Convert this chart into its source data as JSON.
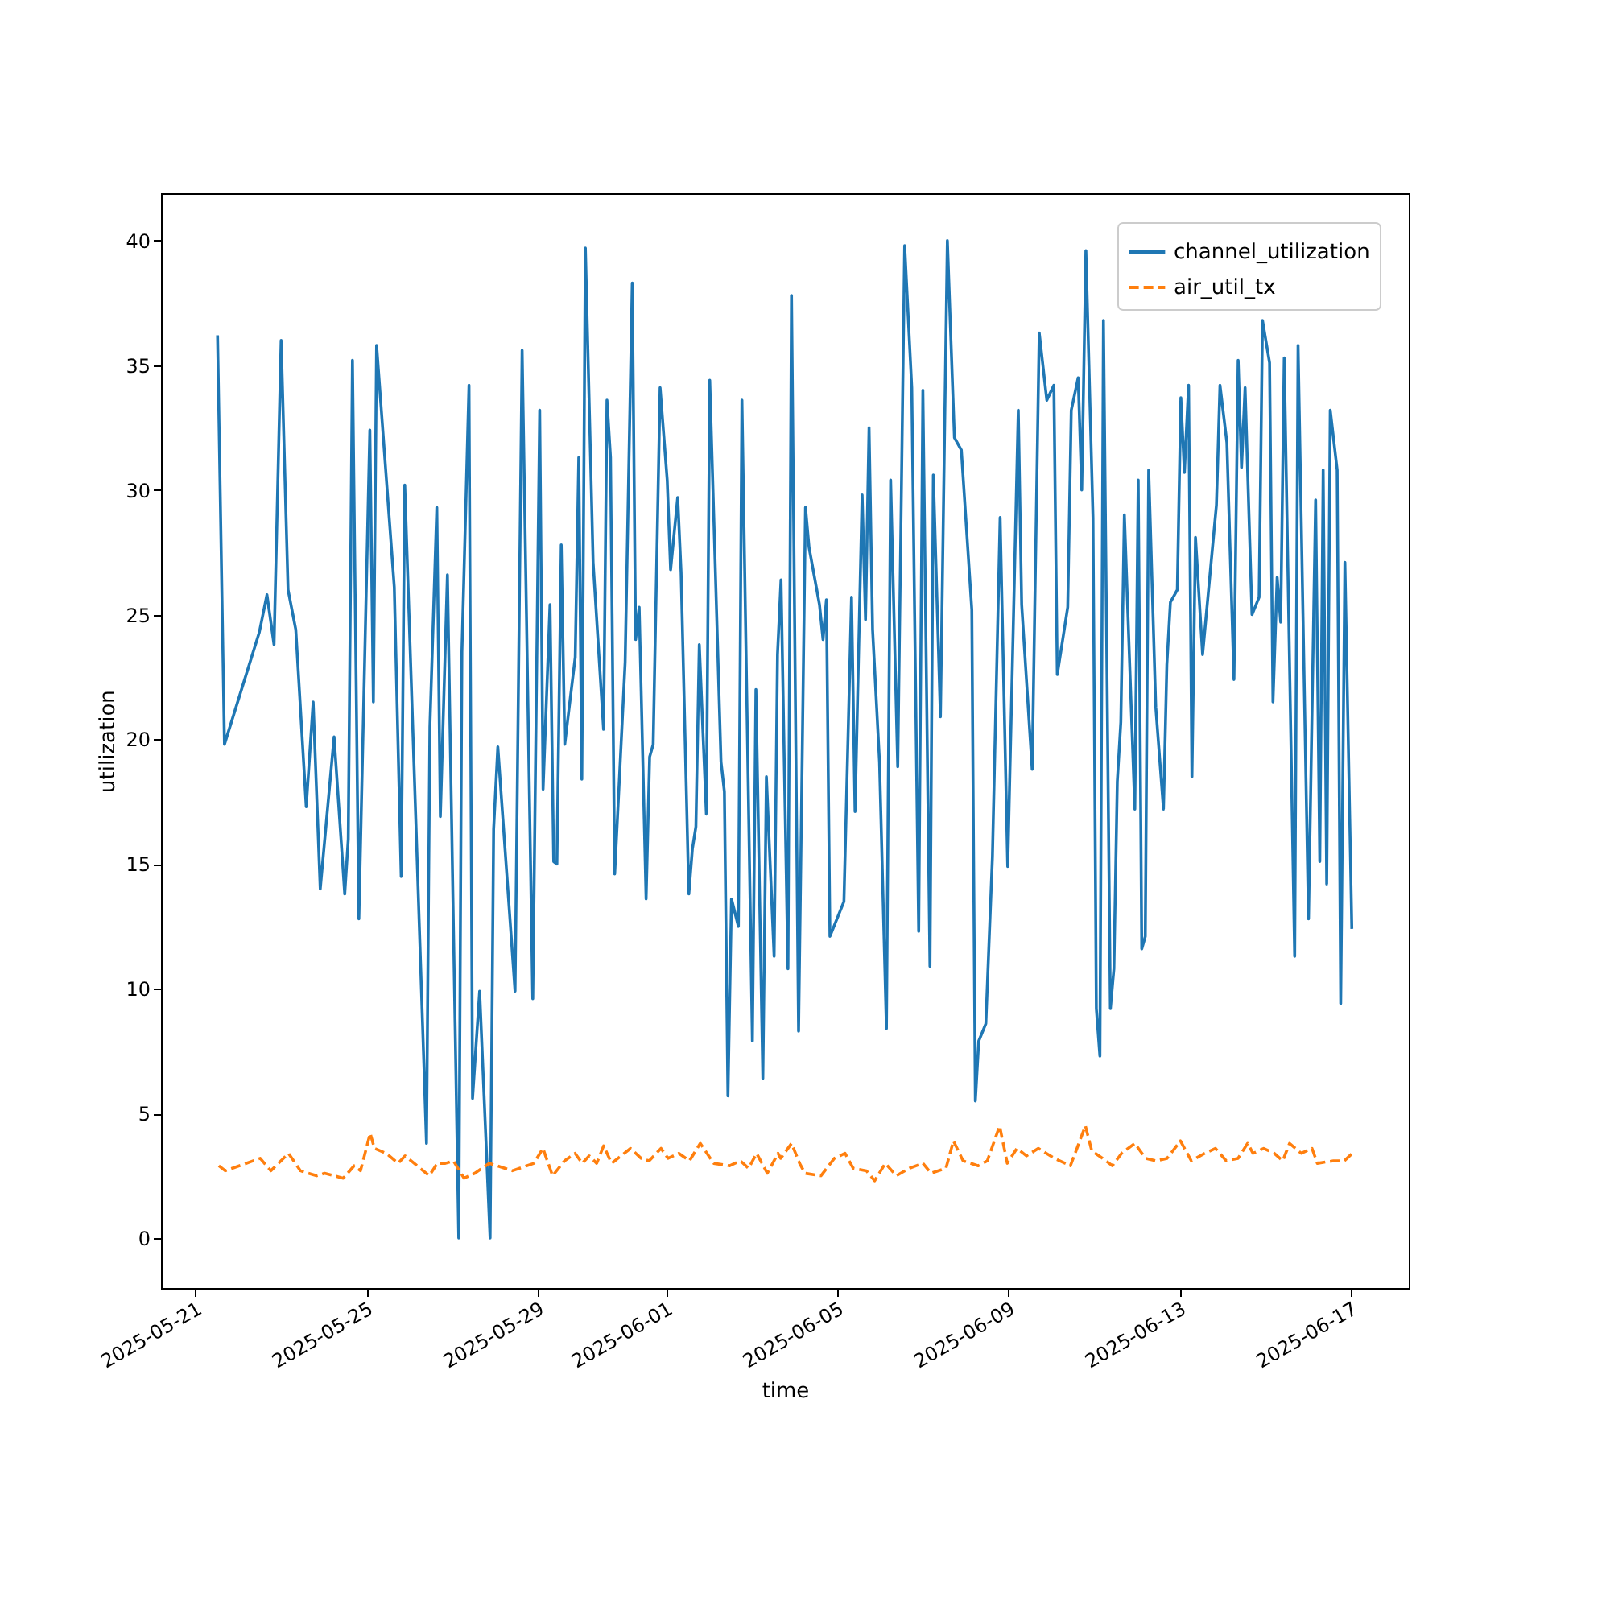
{
  "chart_data": {
    "type": "line",
    "xlabel": "time",
    "ylabel": "utilization",
    "xlim": [
      "2025-05-20T04:50",
      "2025-06-18T08:40"
    ],
    "ylim": [
      -2,
      41.9
    ],
    "xticks": [
      "2025-05-21",
      "2025-05-25",
      "2025-05-29",
      "2025-06-01",
      "2025-06-05",
      "2025-06-09",
      "2025-06-13",
      "2025-06-17"
    ],
    "yticks": [
      0,
      5,
      10,
      15,
      20,
      25,
      30,
      35,
      40
    ],
    "legend": "top right",
    "grid": false,
    "series": [
      {
        "name": "channel_utilization",
        "color": "#1f77b4",
        "line_style": "solid",
        "x": [
          "2025-05-21T12:33",
          "2025-05-21T16:26",
          "2025-05-22T12:00",
          "2025-05-22T16:16",
          "2025-05-22T20:14",
          "2025-05-23T00:13",
          "2025-05-23T04:06",
          "2025-05-23T08:26",
          "2025-05-23T14:18",
          "2025-05-23T18:11",
          "2025-05-23T22:09",
          "2025-05-24T05:55",
          "2025-05-24T11:53",
          "2025-05-24T13:52",
          "2025-05-24T16:13",
          "2025-05-24T19:49",
          "2025-05-25T01:58",
          "2025-05-25T03:57",
          "2025-05-25T05:45",
          "2025-05-25T15:41",
          "2025-05-25T19:34",
          "2025-05-25T21:33",
          "2025-05-26T09:45",
          "2025-05-26T11:39",
          "2025-05-26T15:32",
          "2025-05-26T17:31",
          "2025-05-26T21:29",
          "2025-05-27T03:50",
          "2025-05-27T05:36",
          "2025-05-27T09:35",
          "2025-05-27T11:34",
          "2025-05-27T15:33",
          "2025-05-27T21:25",
          "2025-05-27T23:24",
          "2025-05-28T01:45",
          "2025-05-28T11:25",
          "2025-05-28T15:23",
          "2025-05-28T21:21",
          "2025-05-29T01:14",
          "2025-05-29T03:08",
          "2025-05-29T07:01",
          "2025-05-29T09:05",
          "2025-05-29T10:53",
          "2025-05-29T13:19",
          "2025-05-29T15:18",
          "2025-05-29T21:10",
          "2025-05-29T23:09",
          "2025-05-30T00:52",
          "2025-05-30T02:51",
          "2025-05-30T07:12",
          "2025-05-30T13:04",
          "2025-05-30T14:58",
          "2025-05-30T16:57",
          "2025-05-30T19:18",
          "2025-05-31T01:10",
          "2025-05-31T05:09",
          "2025-05-31T07:03",
          "2025-05-31T09:02",
          "2025-05-31T12:55",
          "2025-05-31T14:54",
          "2025-05-31T16:53",
          "2025-05-31T20:46",
          "2025-06-01T00:45",
          "2025-06-01T02:39",
          "2025-06-01T06:38",
          "2025-06-01T08:32",
          "2025-06-01T12:53",
          "2025-06-01T14:52",
          "2025-06-01T16:51",
          "2025-06-01T18:45",
          "2025-06-01T22:43",
          "2025-06-02T00:37",
          "2025-06-02T06:56",
          "2025-06-02T08:50",
          "2025-06-02T10:49",
          "2025-06-02T12:48",
          "2025-06-02T16:41",
          "2025-06-02T18:40",
          "2025-06-03T00:32",
          "2025-06-03T02:31",
          "2025-06-03T06:24",
          "2025-06-03T08:23",
          "2025-06-03T12:43",
          "2025-06-03T14:37",
          "2025-06-03T16:36",
          "2025-06-03T20:29",
          "2025-06-03T22:28",
          "2025-06-04T02:26",
          "2025-06-04T06:19",
          "2025-06-04T08:18",
          "2025-06-04T14:10",
          "2025-06-04T16:09",
          "2025-06-04T18:03",
          "2025-06-04T20:02",
          "2025-06-05T03:53",
          "2025-06-05T08:08",
          "2025-06-05T10:07",
          "2025-06-05T14:05",
          "2025-06-05T15:59",
          "2025-06-05T17:58",
          "2025-06-05T19:57",
          "2025-06-05T23:50",
          "2025-06-06T03:43",
          "2025-06-06T06:04",
          "2025-06-06T10:03",
          "2025-06-06T13:56",
          "2025-06-06T17:55",
          "2025-06-06T21:48",
          "2025-06-07T00:09",
          "2025-06-07T04:08",
          "2025-06-07T06:01",
          "2025-06-07T10:00",
          "2025-06-07T13:53",
          "2025-06-07T17:51",
          "2025-06-07T21:44",
          "2025-06-08T03:36",
          "2025-06-08T05:35",
          "2025-06-08T07:29",
          "2025-06-08T11:28",
          "2025-06-08T15:10",
          "2025-06-08T19:29",
          "2025-06-08T23:44",
          "2025-06-09T05:40",
          "2025-06-09T07:34",
          "2025-06-09T13:27",
          "2025-06-09T17:25",
          "2025-06-09T21:40",
          "2025-06-10T01:38",
          "2025-06-10T03:32",
          "2025-06-10T09:24",
          "2025-06-10T11:23",
          "2025-06-10T15:16",
          "2025-06-10T17:15",
          "2025-06-10T19:35",
          "2025-06-10T23:34",
          "2025-06-11T01:27",
          "2025-06-11T03:27",
          "2025-06-11T05:26",
          "2025-06-11T09:19",
          "2025-06-11T11:18",
          "2025-06-11T13:12",
          "2025-06-11T15:11",
          "2025-06-11T17:10",
          "2025-06-11T23:02",
          "2025-06-12T00:56",
          "2025-06-12T02:55",
          "2025-06-12T04:54",
          "2025-06-12T06:48",
          "2025-06-12T10:46",
          "2025-06-12T15:06",
          "2025-06-12T17:00",
          "2025-06-12T18:59",
          "2025-06-12T22:52",
          "2025-06-13T00:51",
          "2025-06-13T02:50",
          "2025-06-13T05:11",
          "2025-06-13T07:04",
          "2025-06-13T09:03",
          "2025-06-13T13:02",
          "2025-06-13T20:48",
          "2025-06-13T22:47",
          "2025-06-14T02:40",
          "2025-06-14T06:38",
          "2025-06-14T08:59",
          "2025-06-14T10:53",
          "2025-06-14T12:52",
          "2025-06-14T16:45",
          "2025-06-14T20:44",
          "2025-06-14T22:38",
          "2025-06-15T02:36",
          "2025-06-15T04:30",
          "2025-06-15T06:51",
          "2025-06-15T08:50",
          "2025-06-15T10:49",
          "2025-06-15T16:41",
          "2025-06-15T18:35",
          "2025-06-16T00:27",
          "2025-06-16T04:26",
          "2025-06-16T06:46",
          "2025-06-16T08:40",
          "2025-06-16T10:39",
          "2025-06-16T12:38",
          "2025-06-16T16:31",
          "2025-06-16T18:30",
          "2025-06-16T20:51",
          "2025-06-17T00:44"
        ],
        "values": [
          36.2,
          19.8,
          24.3,
          25.8,
          23.8,
          36.0,
          26.0,
          24.4,
          17.3,
          21.5,
          14.0,
          20.1,
          13.8,
          16.0,
          35.2,
          12.8,
          32.4,
          21.5,
          35.8,
          26.1,
          14.5,
          30.2,
          3.8,
          20.5,
          29.3,
          16.9,
          26.6,
          0.0,
          23.5,
          34.2,
          5.6,
          9.9,
          0.0,
          16.4,
          19.7,
          9.9,
          35.6,
          9.6,
          33.2,
          18.0,
          25.4,
          15.1,
          15.0,
          27.8,
          19.8,
          23.3,
          31.3,
          18.4,
          39.7,
          27.1,
          20.4,
          33.6,
          31.3,
          14.6,
          23.1,
          38.3,
          24.0,
          25.3,
          13.6,
          19.3,
          19.8,
          34.1,
          30.4,
          26.8,
          29.7,
          26.7,
          13.8,
          15.6,
          16.5,
          23.8,
          17.0,
          34.4,
          19.1,
          17.9,
          5.7,
          13.6,
          12.5,
          33.6,
          7.9,
          22.0,
          6.4,
          18.5,
          11.3,
          23.4,
          26.4,
          10.8,
          37.8,
          8.3,
          29.3,
          27.7,
          25.4,
          24.0,
          25.6,
          12.1,
          13.5,
          25.7,
          17.1,
          29.8,
          24.8,
          32.5,
          24.4,
          19.1,
          8.4,
          30.4,
          18.9,
          39.8,
          34.1,
          12.3,
          34.0,
          10.9,
          30.6,
          20.9,
          40.0,
          32.1,
          31.6,
          25.2,
          5.5,
          7.9,
          8.6,
          15.3,
          28.9,
          14.9,
          33.2,
          25.4,
          18.8,
          36.3,
          33.6,
          34.2,
          22.6,
          25.3,
          33.2,
          34.5,
          30.0,
          39.6,
          28.9,
          9.2,
          7.3,
          36.8,
          9.2,
          10.8,
          18.3,
          20.7,
          29.0,
          17.2,
          30.4,
          11.6,
          12.1,
          30.8,
          21.3,
          17.2,
          23.0,
          25.5,
          26.0,
          33.7,
          30.7,
          34.2,
          18.5,
          28.1,
          23.4,
          29.4,
          34.2,
          31.9,
          22.4,
          35.2,
          30.9,
          34.1,
          25.0,
          25.7,
          36.8,
          35.1,
          21.5,
          26.5,
          24.7,
          35.3,
          11.3,
          35.8,
          12.8,
          29.6,
          15.1,
          30.8,
          14.2,
          33.2,
          30.8,
          9.4,
          27.1,
          12.4
        ]
      },
      {
        "name": "air_util_tx",
        "color": "#ff7f0e",
        "line_style": "dashed",
        "x": [
          "2025-05-21T13:16",
          "2025-05-21T16:53",
          "2025-05-22T12:29",
          "2025-05-22T18:26",
          "2025-05-23T04:22",
          "2025-05-23T11:03",
          "2025-05-23T20:05",
          "2025-05-24T00:36",
          "2025-05-24T11:05",
          "2025-05-24T17:08",
          "2025-05-24T20:44",
          "2025-05-25T02:09",
          "2025-05-25T04:35",
          "2025-05-25T11:11",
          "2025-05-25T17:47",
          "2025-05-25T21:45",
          "2025-05-26T11:18",
          "2025-05-26T15:49",
          "2025-05-26T20:20",
          "2025-05-27T00:51",
          "2025-05-27T06:48",
          "2025-05-27T12:51",
          "2025-05-27T21:00",
          "2025-05-28T09:53",
          "2025-05-28T22:00",
          "2025-05-29T03:03",
          "2025-05-29T08:28",
          "2025-05-29T15:09",
          "2025-05-29T21:06",
          "2025-05-30T01:04",
          "2025-05-30T05:00",
          "2025-05-30T09:12",
          "2025-05-30T13:06",
          "2025-05-30T17:36",
          "2025-05-31T04:12",
          "2025-05-31T10:06",
          "2025-05-31T14:36",
          "2025-05-31T21:18",
          "2025-06-01T01:12",
          "2025-06-01T07:18",
          "2025-06-01T13:12",
          "2025-06-01T19:18",
          "2025-06-02T02:48",
          "2025-06-02T11:48",
          "2025-06-02T17:48",
          "2025-06-02T22:24",
          "2025-06-03T02:54",
          "2025-06-03T08:54",
          "2025-06-03T14:54",
          "2025-06-03T16:24",
          "2025-06-03T22:30",
          "2025-06-04T03:00",
          "2025-06-04T06:00",
          "2025-06-04T15:00",
          "2025-06-04T22:30",
          "2025-06-05T04:30",
          "2025-06-05T09:06",
          "2025-06-05T16:30",
          "2025-06-05T21:06",
          "2025-06-06T03:06",
          "2025-06-06T09:12",
          "2025-06-06T16:36",
          "2025-06-07T00:12",
          "2025-06-07T04:42",
          "2025-06-07T13:06",
          "2025-06-07T17:18",
          "2025-06-07T22:42",
          "2025-06-08T07:12",
          "2025-06-08T12:18",
          "2025-06-08T19:12",
          "2025-06-08T23:30",
          "2025-06-09T04:54",
          "2025-06-09T10:18",
          "2025-06-09T16:54",
          "2025-06-10T01:54",
          "2025-06-10T10:54",
          "2025-06-10T19:18",
          "2025-06-10T22:54",
          "2025-06-11T05:00",
          "2025-06-11T10:24",
          "2025-06-11T15:36",
          "2025-06-11T23:00",
          "2025-06-12T05:06",
          "2025-06-12T11:06",
          "2025-06-12T17:06",
          "2025-06-13T00:36",
          "2025-06-13T06:42",
          "2025-06-13T14:12",
          "2025-06-13T20:12",
          "2025-06-14T02:18",
          "2025-06-14T08:54",
          "2025-06-14T14:18",
          "2025-06-14T17:18",
          "2025-06-14T23:18",
          "2025-06-15T05:12",
          "2025-06-15T10:00",
          "2025-06-15T13:48",
          "2025-06-15T20:24",
          "2025-06-16T02:24",
          "2025-06-16T05:24",
          "2025-06-16T14:24",
          "2025-06-16T20:30",
          "2025-06-17T01:00"
        ],
        "values": [
          2.9,
          2.7,
          3.2,
          2.7,
          3.4,
          2.7,
          2.5,
          2.6,
          2.4,
          2.9,
          2.7,
          4.2,
          3.6,
          3.4,
          3.0,
          3.3,
          2.5,
          3.0,
          3.0,
          3.1,
          2.4,
          2.6,
          3.0,
          2.7,
          3.0,
          3.6,
          2.5,
          3.1,
          3.4,
          3.0,
          3.3,
          3.0,
          3.7,
          3.0,
          3.6,
          3.2,
          3.1,
          3.6,
          3.2,
          3.4,
          3.1,
          3.8,
          3.0,
          2.9,
          3.1,
          2.8,
          3.4,
          2.6,
          3.4,
          3.2,
          3.8,
          3.0,
          2.6,
          2.5,
          3.2,
          3.4,
          2.8,
          2.7,
          2.3,
          3.0,
          2.5,
          2.8,
          3.0,
          2.6,
          2.8,
          3.9,
          3.1,
          2.9,
          3.1,
          4.5,
          3.0,
          3.6,
          3.3,
          3.6,
          3.2,
          2.9,
          4.5,
          3.5,
          3.2,
          2.9,
          3.4,
          3.8,
          3.2,
          3.1,
          3.2,
          3.9,
          3.1,
          3.4,
          3.6,
          3.1,
          3.2,
          3.8,
          3.4,
          3.6,
          3.4,
          3.1,
          3.8,
          3.4,
          3.6,
          3.0,
          3.1,
          3.1,
          3.4
        ]
      }
    ]
  }
}
